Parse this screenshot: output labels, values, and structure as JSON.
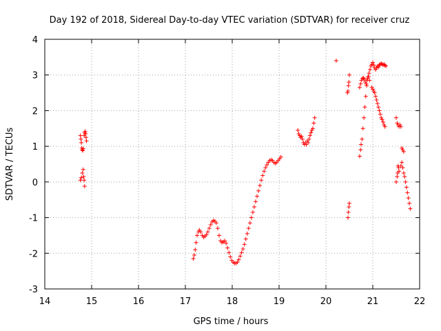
{
  "chart_data": {
    "type": "scatter",
    "title": "Day 192 of 2018, Sidereal Day-to-day VTEC variation (SDTVAR) for receiver cruz",
    "xlabel": "GPS time / hours",
    "ylabel": "SDTVAR / TECUs",
    "xlim": [
      14,
      22
    ],
    "ylim": [
      -3,
      4
    ],
    "xticks": [
      "14",
      "15",
      "16",
      "17",
      "18",
      "19",
      "20",
      "21",
      "22"
    ],
    "yticks": [
      "-3",
      "-2",
      "-1",
      "0",
      "1",
      "2",
      "3",
      "4"
    ],
    "grid": true,
    "marker": "+",
    "series_color": "#ff0000",
    "series": [
      {
        "name": "SDTVAR",
        "points": [
          [
            14.76,
            1.3
          ],
          [
            14.77,
            1.2
          ],
          [
            14.78,
            1.1
          ],
          [
            14.79,
            0.95
          ],
          [
            14.8,
            0.9
          ],
          [
            14.81,
            0.88
          ],
          [
            14.82,
            0.93
          ],
          [
            14.76,
            0.05
          ],
          [
            14.78,
            0.12
          ],
          [
            14.8,
            0.25
          ],
          [
            14.82,
            0.35
          ],
          [
            14.84,
            0.05
          ],
          [
            14.85,
            -0.12
          ],
          [
            14.83,
            0.15
          ],
          [
            14.84,
            1.3
          ],
          [
            14.85,
            1.38
          ],
          [
            14.86,
            1.42
          ],
          [
            14.87,
            1.35
          ],
          [
            14.88,
            1.25
          ],
          [
            14.89,
            1.15
          ],
          [
            17.17,
            -2.15
          ],
          [
            17.19,
            -2.05
          ],
          [
            17.21,
            -1.9
          ],
          [
            17.23,
            -1.7
          ],
          [
            17.25,
            -1.5
          ],
          [
            17.28,
            -1.4
          ],
          [
            17.3,
            -1.35
          ],
          [
            17.33,
            -1.4
          ],
          [
            17.36,
            -1.5
          ],
          [
            17.39,
            -1.55
          ],
          [
            17.42,
            -1.52
          ],
          [
            17.45,
            -1.48
          ],
          [
            17.48,
            -1.4
          ],
          [
            17.51,
            -1.3
          ],
          [
            17.54,
            -1.2
          ],
          [
            17.57,
            -1.12
          ],
          [
            17.6,
            -1.08
          ],
          [
            17.63,
            -1.1
          ],
          [
            17.66,
            -1.15
          ],
          [
            17.69,
            -1.3
          ],
          [
            17.72,
            -1.5
          ],
          [
            17.75,
            -1.65
          ],
          [
            17.78,
            -1.7
          ],
          [
            17.81,
            -1.68
          ],
          [
            17.84,
            -1.65
          ],
          [
            17.87,
            -1.72
          ],
          [
            17.9,
            -1.85
          ],
          [
            17.93,
            -1.98
          ],
          [
            17.96,
            -2.1
          ],
          [
            17.99,
            -2.2
          ],
          [
            18.02,
            -2.25
          ],
          [
            18.05,
            -2.28
          ],
          [
            18.08,
            -2.28
          ],
          [
            18.11,
            -2.25
          ],
          [
            18.14,
            -2.18
          ],
          [
            18.17,
            -2.08
          ],
          [
            18.2,
            -1.98
          ],
          [
            18.23,
            -1.88
          ],
          [
            18.26,
            -1.75
          ],
          [
            18.29,
            -1.6
          ],
          [
            18.32,
            -1.45
          ],
          [
            18.35,
            -1.3
          ],
          [
            18.38,
            -1.15
          ],
          [
            18.41,
            -1.0
          ],
          [
            18.44,
            -0.85
          ],
          [
            18.47,
            -0.7
          ],
          [
            18.5,
            -0.55
          ],
          [
            18.53,
            -0.4
          ],
          [
            18.56,
            -0.25
          ],
          [
            18.59,
            -0.1
          ],
          [
            18.62,
            0.05
          ],
          [
            18.65,
            0.18
          ],
          [
            18.68,
            0.3
          ],
          [
            18.71,
            0.4
          ],
          [
            18.74,
            0.48
          ],
          [
            18.77,
            0.55
          ],
          [
            18.8,
            0.6
          ],
          [
            18.83,
            0.62
          ],
          [
            18.86,
            0.6
          ],
          [
            18.89,
            0.55
          ],
          [
            18.92,
            0.52
          ],
          [
            18.95,
            0.55
          ],
          [
            18.98,
            0.6
          ],
          [
            19.01,
            0.65
          ],
          [
            19.04,
            0.7
          ],
          [
            19.4,
            1.45
          ],
          [
            19.42,
            1.35
          ],
          [
            19.44,
            1.3
          ],
          [
            19.46,
            1.25
          ],
          [
            19.48,
            1.28
          ],
          [
            19.5,
            1.2
          ],
          [
            19.52,
            1.1
          ],
          [
            19.54,
            1.05
          ],
          [
            19.56,
            1.1
          ],
          [
            19.58,
            1.05
          ],
          [
            19.6,
            1.15
          ],
          [
            19.62,
            1.1
          ],
          [
            19.64,
            1.2
          ],
          [
            19.66,
            1.3
          ],
          [
            19.68,
            1.38
          ],
          [
            19.7,
            1.45
          ],
          [
            19.72,
            1.5
          ],
          [
            19.74,
            1.65
          ],
          [
            19.76,
            1.8
          ],
          [
            20.22,
            3.4
          ],
          [
            20.46,
            2.5
          ],
          [
            20.47,
            2.55
          ],
          [
            20.48,
            2.7
          ],
          [
            20.49,
            2.8
          ],
          [
            20.5,
            3.0
          ],
          [
            20.47,
            -1.0
          ],
          [
            20.48,
            -0.85
          ],
          [
            20.49,
            -0.7
          ],
          [
            20.5,
            -0.6
          ],
          [
            20.72,
            0.72
          ],
          [
            20.74,
            0.9
          ],
          [
            20.75,
            1.05
          ],
          [
            20.77,
            1.2
          ],
          [
            20.79,
            1.5
          ],
          [
            20.81,
            1.8
          ],
          [
            20.83,
            2.1
          ],
          [
            20.85,
            2.4
          ],
          [
            20.87,
            2.7
          ],
          [
            20.89,
            2.9
          ],
          [
            20.91,
            2.95
          ],
          [
            20.93,
            2.85
          ],
          [
            20.72,
            2.65
          ],
          [
            20.74,
            2.75
          ],
          [
            20.76,
            2.85
          ],
          [
            20.78,
            2.9
          ],
          [
            20.8,
            2.92
          ],
          [
            20.82,
            2.88
          ],
          [
            20.84,
            2.8
          ],
          [
            20.86,
            2.75
          ],
          [
            20.88,
            2.85
          ],
          [
            20.9,
            2.95
          ],
          [
            20.92,
            3.05
          ],
          [
            20.94,
            3.15
          ],
          [
            20.96,
            3.25
          ],
          [
            20.98,
            3.3
          ],
          [
            21.0,
            3.35
          ],
          [
            21.02,
            3.28
          ],
          [
            21.04,
            3.2
          ],
          [
            21.06,
            3.15
          ],
          [
            21.08,
            3.2
          ],
          [
            21.1,
            3.25
          ],
          [
            21.12,
            3.22
          ],
          [
            21.14,
            3.28
          ],
          [
            21.16,
            3.3
          ],
          [
            21.18,
            3.32
          ],
          [
            21.2,
            3.3
          ],
          [
            21.22,
            3.28
          ],
          [
            21.24,
            3.3
          ],
          [
            21.26,
            3.27
          ],
          [
            21.28,
            3.25
          ],
          [
            20.98,
            2.65
          ],
          [
            21.0,
            2.6
          ],
          [
            21.02,
            2.55
          ],
          [
            21.04,
            2.5
          ],
          [
            21.06,
            2.4
          ],
          [
            21.08,
            2.3
          ],
          [
            21.1,
            2.2
          ],
          [
            21.12,
            2.1
          ],
          [
            21.14,
            2.0
          ],
          [
            21.16,
            1.9
          ],
          [
            21.18,
            1.8
          ],
          [
            21.2,
            1.75
          ],
          [
            21.22,
            1.68
          ],
          [
            21.24,
            1.6
          ],
          [
            21.26,
            1.55
          ],
          [
            21.5,
            0.0
          ],
          [
            21.52,
            0.15
          ],
          [
            21.53,
            0.25
          ],
          [
            21.54,
            0.45
          ],
          [
            21.55,
            0.4
          ],
          [
            21.56,
            0.3
          ],
          [
            21.5,
            1.8
          ],
          [
            21.52,
            1.65
          ],
          [
            21.54,
            1.6
          ],
          [
            21.56,
            1.55
          ],
          [
            21.58,
            1.6
          ],
          [
            21.6,
            1.55
          ],
          [
            21.62,
            0.95
          ],
          [
            21.64,
            0.9
          ],
          [
            21.66,
            0.85
          ],
          [
            21.6,
            0.45
          ],
          [
            21.62,
            0.55
          ],
          [
            21.64,
            0.4
          ],
          [
            21.66,
            0.25
          ],
          [
            21.68,
            0.15
          ],
          [
            21.7,
            0.0
          ],
          [
            21.72,
            -0.15
          ],
          [
            21.74,
            -0.3
          ],
          [
            21.76,
            -0.45
          ],
          [
            21.78,
            -0.6
          ],
          [
            21.8,
            -0.75
          ]
        ]
      }
    ]
  }
}
